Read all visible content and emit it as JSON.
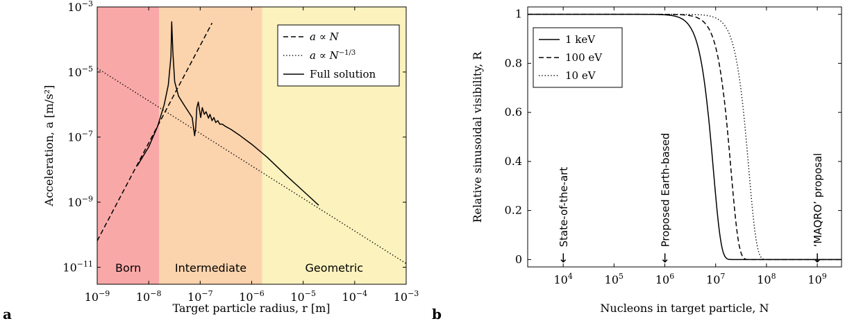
{
  "figure": {
    "panel_labels": [
      "a",
      "b"
    ]
  },
  "chart_data": [
    {
      "panel": "a",
      "type": "line",
      "xlabel": "Target particle radius, r [m]",
      "ylabel": "Acceleration, a [m/s²]",
      "xscale": "log",
      "yscale": "log",
      "xlim": [
        1e-09,
        0.001
      ],
      "ylim": [
        3e-12,
        0.001
      ],
      "xticks": [
        {
          "base": "10",
          "exp": "−9"
        },
        {
          "base": "10",
          "exp": "−8"
        },
        {
          "base": "10",
          "exp": "−7"
        },
        {
          "base": "10",
          "exp": "−6"
        },
        {
          "base": "10",
          "exp": "−5"
        },
        {
          "base": "10",
          "exp": "−4"
        },
        {
          "base": "10",
          "exp": "−3"
        }
      ],
      "yticks": [
        {
          "value": 1e-11,
          "base": "10",
          "exp": "−11"
        },
        {
          "value": 1e-09,
          "base": "10",
          "exp": "−9"
        },
        {
          "value": 1e-07,
          "base": "10",
          "exp": "−7"
        },
        {
          "value": 1e-05,
          "base": "10",
          "exp": "−5"
        },
        {
          "value": 0.001,
          "base": "10",
          "exp": "−3"
        }
      ],
      "regions": [
        {
          "label": "Born",
          "from": 1e-09,
          "to": 1.6e-08,
          "color": "#f9a8a8"
        },
        {
          "label": "Intermediate",
          "from": 1.6e-08,
          "to": 1.6e-06,
          "color": "#fbd3ad"
        },
        {
          "label": "Geometric",
          "from": 1.6e-06,
          "to": 0.001,
          "color": "#fbf2bd"
        }
      ],
      "legend_position": "top-right",
      "series": [
        {
          "name": "a ∝ N",
          "legend": {
            "var": "a",
            "rel": " ∝ ",
            "base": "N",
            "exp": ""
          },
          "style": "dashed",
          "x": [
            1e-09,
            3e-08,
            1e-07,
            1.7e-07
          ],
          "y": [
            6.5e-11,
            1.8e-06,
            6.5e-05,
            0.00032
          ]
        },
        {
          "name": "a ∝ N^{-1/3}",
          "legend": {
            "var": "a",
            "rel": " ∝ ",
            "base": "N",
            "exp": "−1/3"
          },
          "style": "dotted",
          "x": [
            1e-09,
            0.001
          ],
          "y": [
            1.3e-05,
            1.3e-11
          ]
        },
        {
          "name": "Full solution",
          "legend": {
            "var": "",
            "rel": "",
            "base": "Full solution",
            "exp": ""
          },
          "style": "solid",
          "x": [
            6e-09,
            1e-08,
            1.5e-08,
            2e-08,
            2.4e-08,
            2.7e-08,
            2.8e-08,
            2.95e-08,
            3.2e-08,
            3.8e-08,
            5e-08,
            7e-08,
            7.8e-08,
            8.2e-08,
            8.6e-08,
            9.2e-08,
            1.02e-07,
            1.1e-07,
            1.2e-07,
            1.3e-07,
            1.45e-07,
            1.55e-07,
            1.7e-07,
            1.85e-07,
            2e-07,
            2.2e-07,
            2.4e-07,
            2.7e-07,
            3e-07,
            4e-07,
            6e-07,
            1e-06,
            2e-06,
            5e-06,
            1e-05,
            2e-05
          ],
          "y": [
            1.3e-08,
            5e-08,
            2.2e-07,
            1e-06,
            4e-06,
            3e-05,
            0.00035,
            4e-05,
            5e-06,
            1.8e-06,
            9e-07,
            4e-07,
            1.1e-07,
            2e-07,
            8e-07,
            1.2e-06,
            4e-07,
            8e-07,
            5e-07,
            6e-07,
            3.8e-07,
            5e-07,
            3.2e-07,
            4e-07,
            2.8e-07,
            3.2e-07,
            2.5e-07,
            2.5e-07,
            2.2e-07,
            1.7e-07,
            1.1e-07,
            6e-08,
            2.4e-08,
            6e-09,
            2.2e-09,
            8e-10
          ]
        }
      ]
    },
    {
      "panel": "b",
      "type": "line",
      "xlabel": "Nucleons in target particle, N",
      "ylabel": "Relative sinusoidal visibility, R",
      "xscale": "log",
      "yscale": "linear",
      "xlim": [
        2000.0,
        3000000000.0
      ],
      "ylim": [
        -0.03,
        1.03
      ],
      "xticks": [
        {
          "value": 10000.0,
          "base": "10",
          "exp": "4"
        },
        {
          "value": 100000.0,
          "base": "10",
          "exp": "5"
        },
        {
          "value": 1000000.0,
          "base": "10",
          "exp": "6"
        },
        {
          "value": 10000000.0,
          "base": "10",
          "exp": "7"
        },
        {
          "value": 100000000.0,
          "base": "10",
          "exp": "8"
        },
        {
          "value": 1000000000.0,
          "base": "10",
          "exp": "9"
        }
      ],
      "yticks": [
        0,
        0.2,
        0.4,
        0.6,
        0.8,
        1
      ],
      "ytick_labels": [
        "0",
        "0.2",
        "0.4",
        "0.6",
        "0.8",
        "1"
      ],
      "legend_position": "top-left",
      "series": [
        {
          "name": "1 keV",
          "style": "solid",
          "center": 9000000.0,
          "width": 2.8
        },
        {
          "name": "100 eV",
          "style": "dashed",
          "center": 20000000.0,
          "width": 2.8
        },
        {
          "name": "10 eV",
          "style": "dotted",
          "center": 45000000.0,
          "width": 2.8
        }
      ],
      "annotations": [
        {
          "text": "State-of-the-art",
          "x": 10000.0,
          "arrow": "↓"
        },
        {
          "text": "Proposed Earth-based",
          "x": 1000000.0,
          "arrow": "↓"
        },
        {
          "text": "‘MAQRO’ proposal",
          "x": 1000000000.0,
          "arrow": "↓"
        }
      ]
    }
  ]
}
